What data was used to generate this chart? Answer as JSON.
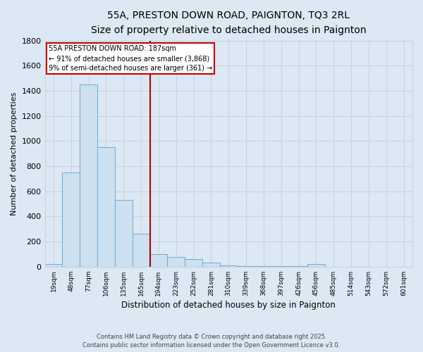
{
  "title_line1": "55A, PRESTON DOWN ROAD, PAIGNTON, TQ3 2RL",
  "title_line2": "Size of property relative to detached houses in Paignton",
  "xlabel": "Distribution of detached houses by size in Paignton",
  "ylabel": "Number of detached properties",
  "footer_line1": "Contains HM Land Registry data © Crown copyright and database right 2025.",
  "footer_line2": "Contains public sector information licensed under the Open Government Licence v3.0.",
  "bin_labels": [
    "19sqm",
    "48sqm",
    "77sqm",
    "106sqm",
    "135sqm",
    "165sqm",
    "194sqm",
    "223sqm",
    "252sqm",
    "281sqm",
    "310sqm",
    "339sqm",
    "368sqm",
    "397sqm",
    "426sqm",
    "456sqm",
    "485sqm",
    "514sqm",
    "543sqm",
    "572sqm",
    "601sqm"
  ],
  "bar_values": [
    20,
    750,
    1450,
    950,
    530,
    265,
    100,
    80,
    60,
    30,
    10,
    5,
    4,
    2,
    2,
    20,
    0,
    0,
    0,
    0,
    0
  ],
  "bar_color": "#cce0f0",
  "bar_edge_color": "#6aaad4",
  "red_line_x": 6,
  "marker_color": "#aa0000",
  "annotation_title": "55A PRESTON DOWN ROAD: 187sqm",
  "annotation_line1": "← 91% of detached houses are smaller (3,868)",
  "annotation_line2": "9% of semi-detached houses are larger (361) →",
  "annotation_box_color": "#ffffff",
  "annotation_border_color": "#cc0000",
  "ylim": [
    0,
    1800
  ],
  "yticks": [
    0,
    200,
    400,
    600,
    800,
    1000,
    1200,
    1400,
    1600,
    1800
  ],
  "grid_color": "#c8d4e0",
  "bg_color": "#dce8f4"
}
